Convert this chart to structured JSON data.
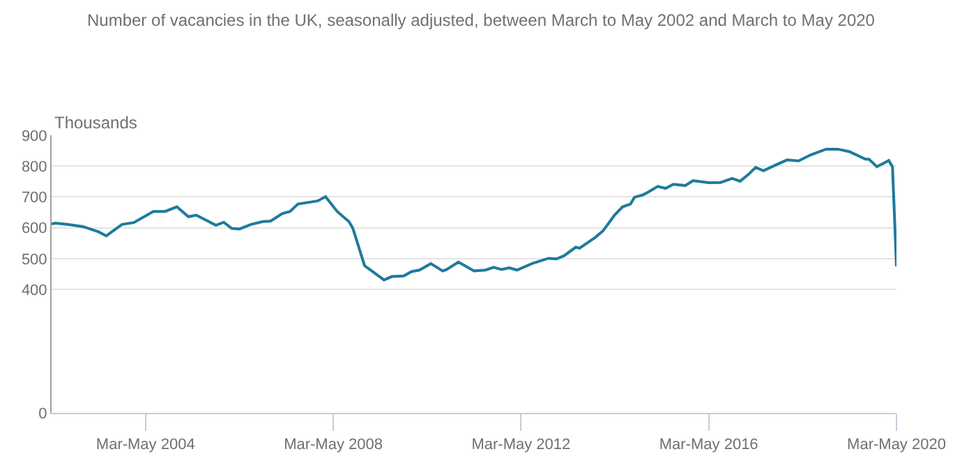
{
  "chart_data": {
    "type": "line",
    "title": "Number of vacancies in the UK, seasonally adjusted, between March to May 2002 and March to May 2020",
    "ylabel": "Thousands",
    "x": [
      "2002-04",
      "2002-05",
      "2002-08",
      "2002-12",
      "2003-04",
      "2003-06",
      "2003-10",
      "2004-01",
      "2004-06",
      "2004-09",
      "2004-12",
      "2005-03",
      "2005-05",
      "2005-10",
      "2005-12",
      "2006-02",
      "2006-04",
      "2006-07",
      "2006-10",
      "2006-12",
      "2007-03",
      "2007-05",
      "2007-07",
      "2007-12",
      "2008-02",
      "2008-05",
      "2008-08",
      "2008-09",
      "2008-12",
      "2009-02",
      "2009-05",
      "2009-07",
      "2009-10",
      "2009-12",
      "2010-02",
      "2010-05",
      "2010-08",
      "2010-09",
      "2010-12",
      "2011-04",
      "2011-07",
      "2011-09",
      "2011-11",
      "2012-01",
      "2012-03",
      "2012-07",
      "2012-11",
      "2013-01",
      "2013-03",
      "2013-06",
      "2013-07",
      "2013-11",
      "2014-01",
      "2014-04",
      "2014-06",
      "2014-08",
      "2014-09",
      "2014-11",
      "2014-12",
      "2015-03",
      "2015-05",
      "2015-07",
      "2015-10",
      "2015-12",
      "2016-04",
      "2016-07",
      "2016-10",
      "2016-12",
      "2017-02",
      "2017-04",
      "2017-06",
      "2017-09",
      "2017-12",
      "2018-03",
      "2018-06",
      "2018-10",
      "2019-01",
      "2019-04",
      "2019-08",
      "2019-09",
      "2019-11",
      "2020-02",
      "2020-03",
      "2020-04"
    ],
    "series": [
      {
        "color": "#1f7a9c",
        "values": [
          613,
          615,
          611,
          604,
          587,
          574,
          611,
          617,
          653,
          653,
          668,
          636,
          641,
          608,
          618,
          598,
          596,
          611,
          620,
          622,
          646,
          653,
          677,
          687,
          701,
          653,
          620,
          598,
          477,
          458,
          431,
          442,
          444,
          458,
          463,
          484,
          460,
          465,
          489,
          460,
          463,
          472,
          465,
          470,
          463,
          485,
          501,
          499,
          509,
          537,
          534,
          569,
          591,
          642,
          668,
          677,
          699,
          706,
          712,
          734,
          728,
          741,
          737,
          753,
          746,
          747,
          760,
          751,
          772,
          796,
          785,
          803,
          820,
          817,
          836,
          855,
          855,
          847,
          823,
          822,
          798,
          818,
          798,
          475
        ]
      }
    ],
    "xlim": [
      "2002-04",
      "2020-04"
    ],
    "xticks": [
      {
        "value": "2004-04",
        "label": "Mar-May 2004"
      },
      {
        "value": "2008-04",
        "label": "Mar-May 2008"
      },
      {
        "value": "2012-04",
        "label": "Mar-May 2012"
      },
      {
        "value": "2016-04",
        "label": "Mar-May 2016"
      },
      {
        "value": "2020-04",
        "label": "Mar-May 2020"
      }
    ],
    "ylim": [
      0,
      900
    ],
    "yticks": [
      0,
      400,
      500,
      600,
      700,
      800,
      900
    ],
    "grid": "y",
    "legend": false,
    "marker": "none",
    "line_style": "solid"
  }
}
